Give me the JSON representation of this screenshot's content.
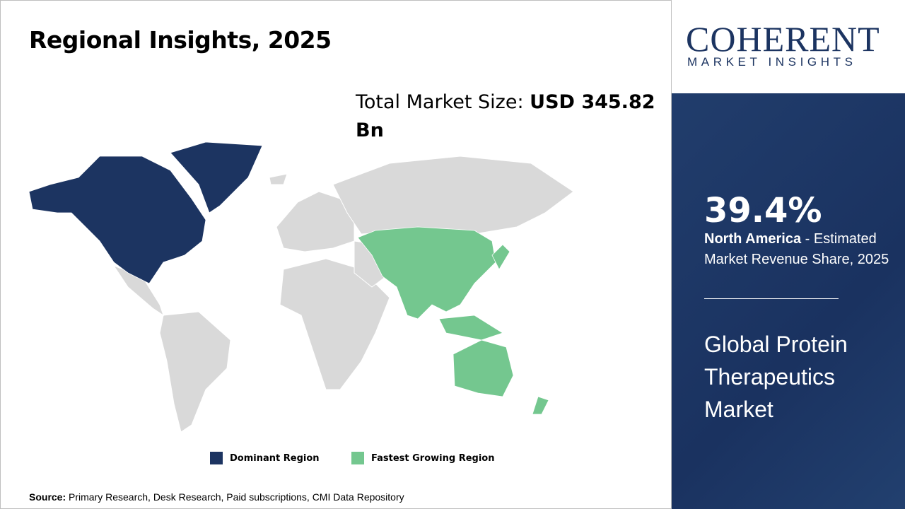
{
  "title": "Regional Insights, 2025",
  "total_market": {
    "label": "Total Market Size: ",
    "value": "USD 345.82 Bn"
  },
  "logo": {
    "brand": "COHERENT",
    "tagline": "MARKET INSIGHTS"
  },
  "highlight": {
    "percent": "39.4%",
    "region": "North America",
    "description": " - Estimated Market Revenue Share, 2025"
  },
  "market_name": "Global Protein Therapeutics Market",
  "legend": [
    {
      "label": "Dominant Region",
      "color": "#1c3461"
    },
    {
      "label": "Fastest Growing Region",
      "color": "#74c78f"
    }
  ],
  "map": {
    "dominant_region": "North America",
    "fastest_growing_region": "Asia Pacific",
    "other_color": "#d9d9d9"
  },
  "source": {
    "label": "Source:",
    "text": " Primary Research, Desk Research, Paid subscriptions, CMI Data Repository"
  }
}
